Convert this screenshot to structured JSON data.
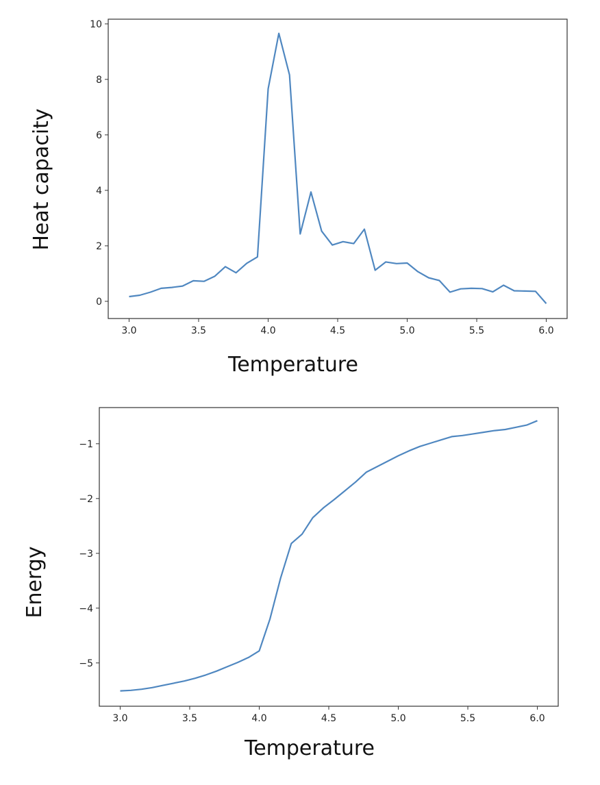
{
  "chart_data": [
    {
      "type": "line",
      "title": "",
      "xlabel": "Temperature",
      "ylabel": "Heat capacity",
      "xlim": [
        2.85,
        6.15
      ],
      "ylim": [
        -0.62,
        10.17
      ],
      "xticks": [
        3.0,
        3.5,
        4.0,
        4.5,
        5.0,
        5.5,
        6.0
      ],
      "xtick_labels": [
        "3.0",
        "3.5",
        "4.0",
        "4.5",
        "5.0",
        "5.5",
        "6.0"
      ],
      "yticks": [
        0,
        2,
        4,
        6,
        8,
        10
      ],
      "ytick_labels": [
        "0",
        "2",
        "4",
        "6",
        "8",
        "10"
      ],
      "grid": false,
      "color": "#4f87c0",
      "x_range": [
        3.0,
        6.0
      ],
      "n_points": 40,
      "values": [
        0.17,
        0.22,
        0.33,
        0.47,
        0.5,
        0.55,
        0.74,
        0.72,
        0.9,
        1.25,
        1.03,
        1.37,
        1.6,
        7.66,
        9.66,
        8.16,
        2.43,
        3.94,
        2.53,
        2.03,
        2.15,
        2.08,
        2.6,
        1.12,
        1.42,
        1.36,
        1.38,
        1.07,
        0.85,
        0.75,
        0.33,
        0.45,
        0.47,
        0.46,
        0.34,
        0.58,
        0.38,
        0.37,
        0.36,
        -0.08
      ]
    },
    {
      "type": "line",
      "title": "",
      "xlabel": "Temperature",
      "ylabel": "Energy",
      "xlim": [
        2.85,
        6.15
      ],
      "ylim": [
        -5.79,
        -0.34
      ],
      "xticks": [
        3.0,
        3.5,
        4.0,
        4.5,
        5.0,
        5.5,
        6.0
      ],
      "xtick_labels": [
        "3.0",
        "3.5",
        "4.0",
        "4.5",
        "5.0",
        "5.5",
        "6.0"
      ],
      "yticks": [
        -1,
        -2,
        -3,
        -4,
        -5
      ],
      "ytick_labels": [
        "−1",
        "−2",
        "−3",
        "−4",
        "−5"
      ],
      "grid": false,
      "color": "#4f87c0",
      "x_range": [
        3.0,
        6.0
      ],
      "n_points": 40,
      "values": [
        -5.51,
        -5.5,
        -5.48,
        -5.45,
        -5.41,
        -5.37,
        -5.33,
        -5.28,
        -5.22,
        -5.15,
        -5.07,
        -4.99,
        -4.9,
        -4.78,
        -4.2,
        -3.45,
        -2.82,
        -2.65,
        -2.35,
        -2.17,
        -2.02,
        -1.86,
        -1.7,
        -1.52,
        -1.42,
        -1.32,
        -1.22,
        -1.13,
        -1.05,
        -0.99,
        -0.93,
        -0.87,
        -0.85,
        -0.82,
        -0.79,
        -0.76,
        -0.74,
        -0.7,
        -0.66,
        -0.58
      ]
    }
  ]
}
